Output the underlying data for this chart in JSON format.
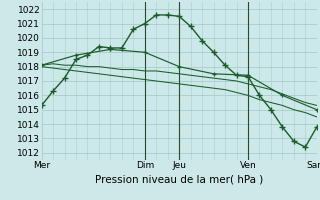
{
  "xlabel": "Pression niveau de la mer( hPa )",
  "bg_color": "#cce8e8",
  "grid_color": "#aacccc",
  "line_color": "#1a5c2a",
  "ylim": [
    1011.5,
    1022.5
  ],
  "yticks": [
    1012,
    1013,
    1014,
    1015,
    1016,
    1017,
    1018,
    1019,
    1020,
    1021,
    1022
  ],
  "day_labels": [
    "Mer",
    "",
    "Dim",
    "Jeu",
    "",
    "Ven",
    "",
    "Sam"
  ],
  "xtick_show": [
    0,
    9,
    12,
    18,
    24
  ],
  "xtick_labels_show": [
    "Mer",
    "Dim",
    "Jeu",
    "Ven",
    "Sam"
  ],
  "series1_x": [
    0,
    1,
    2,
    3,
    4,
    5,
    6,
    7,
    8,
    9,
    10,
    11,
    12,
    13,
    14,
    15,
    16,
    17,
    18,
    19,
    20,
    21,
    22,
    23,
    24
  ],
  "series1_y": [
    1015.3,
    1016.3,
    1017.2,
    1018.5,
    1018.8,
    1019.4,
    1019.3,
    1019.3,
    1020.6,
    1021.0,
    1021.6,
    1021.6,
    1021.5,
    1020.8,
    1019.8,
    1019.0,
    1018.1,
    1017.4,
    1017.3,
    1016.0,
    1015.0,
    1013.8,
    1012.8,
    1012.4,
    1013.8
  ],
  "series2_x": [
    0,
    1,
    2,
    3,
    4,
    5,
    6,
    7,
    8,
    9,
    10,
    11,
    12,
    13,
    14,
    15,
    16,
    17,
    18,
    19,
    20,
    21,
    22,
    23,
    24
  ],
  "series2_y": [
    1018.1,
    1018.2,
    1018.1,
    1018.1,
    1018.0,
    1018.0,
    1017.9,
    1017.8,
    1017.8,
    1017.7,
    1017.7,
    1017.6,
    1017.5,
    1017.4,
    1017.3,
    1017.2,
    1017.1,
    1017.0,
    1016.8,
    1016.6,
    1016.4,
    1016.1,
    1015.8,
    1015.5,
    1015.3
  ],
  "series3_x": [
    0,
    1,
    2,
    3,
    4,
    5,
    6,
    7,
    8,
    9,
    10,
    11,
    12,
    13,
    14,
    15,
    16,
    17,
    18,
    19,
    20,
    21,
    22,
    23,
    24
  ],
  "series3_y": [
    1018.0,
    1017.9,
    1017.8,
    1017.7,
    1017.6,
    1017.5,
    1017.4,
    1017.3,
    1017.2,
    1017.1,
    1017.0,
    1016.9,
    1016.8,
    1016.7,
    1016.6,
    1016.5,
    1016.4,
    1016.2,
    1016.0,
    1015.7,
    1015.5,
    1015.3,
    1015.0,
    1014.8,
    1014.5
  ],
  "series4_x": [
    0,
    3,
    6,
    9,
    12,
    15,
    18,
    21,
    24
  ],
  "series4_y": [
    1018.1,
    1018.8,
    1019.2,
    1019.0,
    1018.0,
    1017.5,
    1017.4,
    1016.0,
    1015.0
  ],
  "vlines_x": [
    9,
    12,
    18
  ],
  "marker_style": "+",
  "marker_size": 4,
  "line_width": 1.0,
  "font_size_tick": 6.5,
  "font_size_xlabel": 7.5
}
